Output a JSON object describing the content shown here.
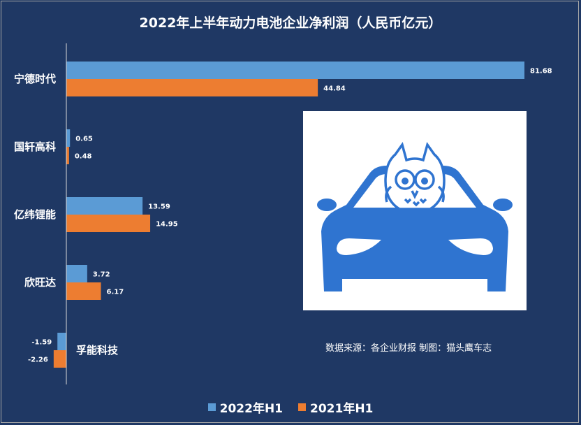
{
  "title": "2022年上半年动力电池企业净利润（人民币亿元）",
  "source_note": "数据来源：各企业财报  制图：猫头鹰车志",
  "colors": {
    "background": "#1f3864",
    "series_2022": "#5b9bd5",
    "series_2021": "#ed7d31"
  },
  "logo": {
    "icon": "owl-on-car-icon"
  },
  "chart_data": {
    "type": "bar",
    "orientation": "horizontal",
    "title": "2022年上半年动力电池企业净利润（人民币亿元）",
    "categories": [
      "宁德时代",
      "国轩高科",
      "亿纬锂能",
      "欣旺达",
      "孚能科技"
    ],
    "series": [
      {
        "name": "2022年H1",
        "values": [
          81.68,
          0.65,
          13.59,
          3.72,
          -1.59
        ],
        "labels": [
          "81.68",
          "0.65",
          "13.59",
          "3.72",
          "-1.59"
        ]
      },
      {
        "name": "2021年H1",
        "values": [
          44.84,
          0.48,
          14.95,
          6.17,
          -2.26
        ],
        "labels": [
          "44.84",
          "0.48",
          "14.95",
          "6.17",
          "-2.26"
        ]
      }
    ],
    "xlim": [
      -2.26,
      81.68
    ],
    "grid": false,
    "legend_position": "bottom"
  }
}
